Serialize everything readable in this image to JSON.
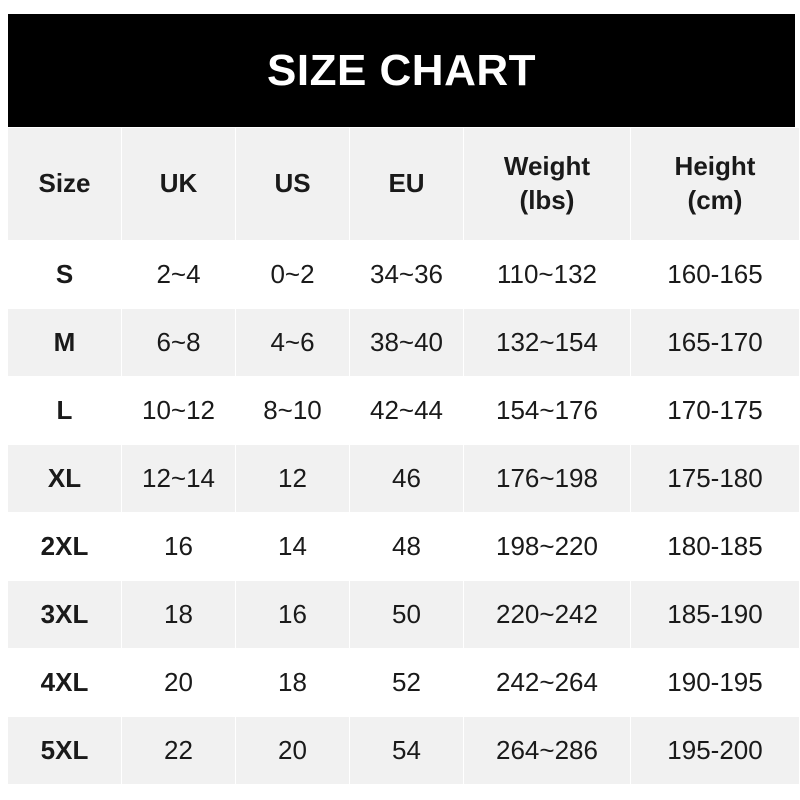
{
  "title": "SIZE CHART",
  "headers": [
    "Size",
    "UK",
    "US",
    "EU",
    "Weight\n(lbs)",
    "Height\n(cm)"
  ],
  "rows": [
    [
      "S",
      "2~4",
      "0~2",
      "34~36",
      "110~132",
      "160-165"
    ],
    [
      "M",
      "6~8",
      "4~6",
      "38~40",
      "132~154",
      "165-170"
    ],
    [
      "L",
      "10~12",
      "8~10",
      "42~44",
      "154~176",
      "170-175"
    ],
    [
      "XL",
      "12~14",
      "12",
      "46",
      "176~198",
      "175-180"
    ],
    [
      "2XL",
      "16",
      "14",
      "48",
      "198~220",
      "180-185"
    ],
    [
      "3XL",
      "18",
      "16",
      "50",
      "220~242",
      "185-190"
    ],
    [
      "4XL",
      "20",
      "18",
      "52",
      "242~264",
      "190-195"
    ],
    [
      "5XL",
      "22",
      "20",
      "54",
      "264~286",
      "195-200"
    ]
  ],
  "colors": {
    "banner": "#000000",
    "stripe": "#f1f1f1",
    "text": "#1a1a1a"
  }
}
